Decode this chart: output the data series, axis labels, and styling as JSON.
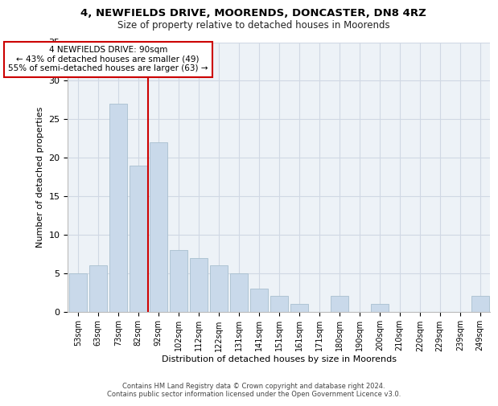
{
  "title1": "4, NEWFIELDS DRIVE, MOORENDS, DONCASTER, DN8 4RZ",
  "title2": "Size of property relative to detached houses in Moorends",
  "xlabel": "Distribution of detached houses by size in Moorends",
  "ylabel": "Number of detached properties",
  "bar_labels": [
    "53sqm",
    "63sqm",
    "73sqm",
    "82sqm",
    "92sqm",
    "102sqm",
    "112sqm",
    "122sqm",
    "131sqm",
    "141sqm",
    "151sqm",
    "161sqm",
    "171sqm",
    "180sqm",
    "190sqm",
    "200sqm",
    "210sqm",
    "220sqm",
    "229sqm",
    "239sqm",
    "249sqm"
  ],
  "bar_values": [
    5,
    6,
    27,
    19,
    22,
    8,
    7,
    6,
    5,
    3,
    2,
    1,
    0,
    2,
    0,
    1,
    0,
    0,
    0,
    0,
    2
  ],
  "bar_color": "#c9d9ea",
  "bar_edge_color": "#a8bfcf",
  "vline_color": "#cc0000",
  "annotation_text": "4 NEWFIELDS DRIVE: 90sqm\n← 43% of detached houses are smaller (49)\n55% of semi-detached houses are larger (63) →",
  "annotation_box_color": "#ffffff",
  "annotation_border_color": "#cc0000",
  "grid_color": "#d0d8e4",
  "bg_color": "#edf2f7",
  "ylim": [
    0,
    35
  ],
  "yticks": [
    0,
    5,
    10,
    15,
    20,
    25,
    30,
    35
  ],
  "footer1": "Contains HM Land Registry data © Crown copyright and database right 2024.",
  "footer2": "Contains public sector information licensed under the Open Government Licence v3.0."
}
